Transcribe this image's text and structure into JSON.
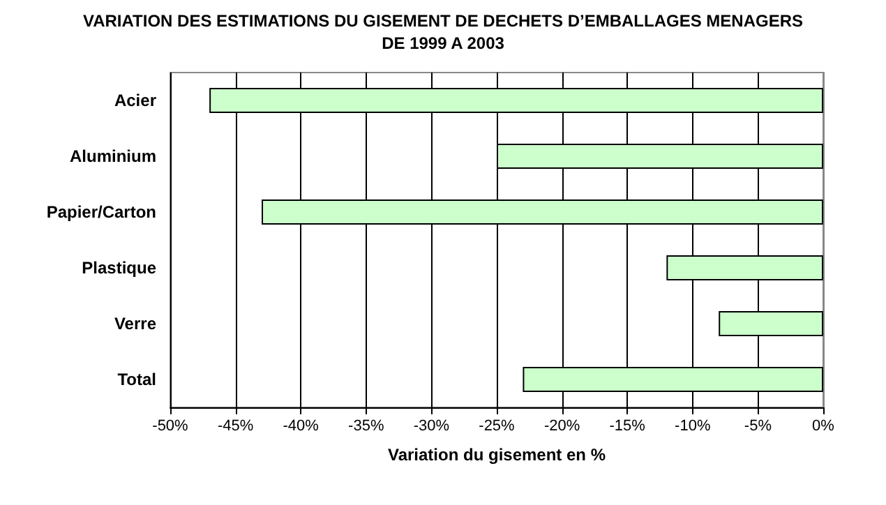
{
  "chart_data": {
    "type": "bar",
    "orientation": "horizontal",
    "title": "VARIATION DES ESTIMATIONS DU GISEMENT DE DECHETS D’EMBALLAGES MENAGERS\nDE 1999 A 2003",
    "xlabel": "Variation du gisement en %",
    "categories": [
      "Acier",
      "Aluminium",
      "Papier/Carton",
      "Plastique",
      "Verre",
      "Total"
    ],
    "values": [
      -47,
      -25,
      -43,
      -12,
      -8,
      -23
    ],
    "color": "#ccffcc",
    "xlim": [
      -50,
      0
    ],
    "xticks": [
      {
        "value": -50,
        "label": "-50%"
      },
      {
        "value": -45,
        "label": "-45%"
      },
      {
        "value": -40,
        "label": "-40%"
      },
      {
        "value": -35,
        "label": "-35%"
      },
      {
        "value": -30,
        "label": "-30%"
      },
      {
        "value": -25,
        "label": "-25%"
      },
      {
        "value": -20,
        "label": "-20%"
      },
      {
        "value": -15,
        "label": "-15%"
      },
      {
        "value": -10,
        "label": "-10%"
      },
      {
        "value": -5,
        "label": "-5%"
      },
      {
        "value": 0,
        "label": "0%"
      }
    ],
    "grid": "x"
  }
}
